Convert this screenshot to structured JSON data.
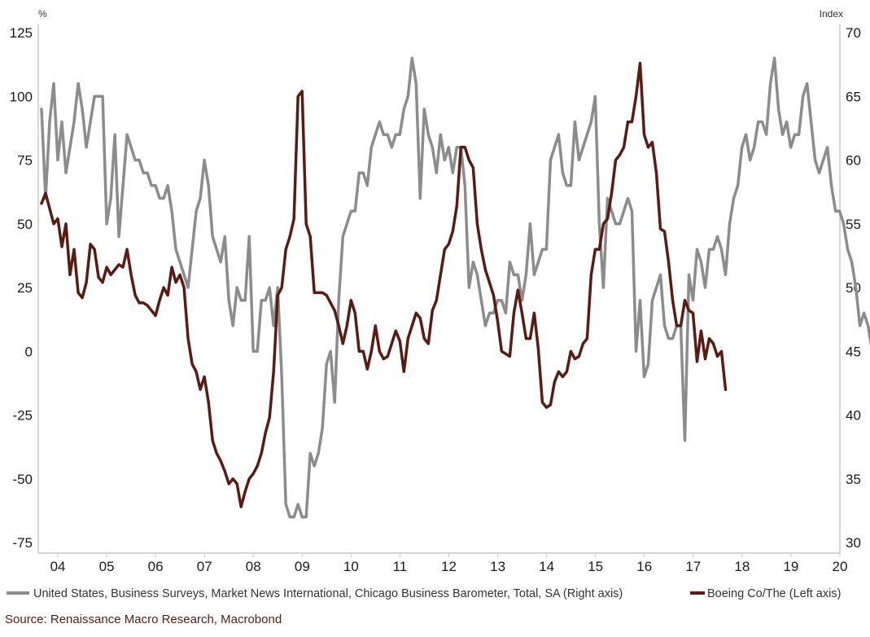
{
  "chart_data": {
    "type": "line",
    "left_axis": {
      "unit_label": "%",
      "ylim": [
        -75,
        125
      ],
      "ticks": [
        125,
        100,
        75,
        50,
        25,
        0,
        -25,
        -50,
        -75
      ],
      "tick_labels": [
        "125",
        "100",
        "75",
        "50",
        "25",
        "0",
        "-25",
        "-50",
        "-75"
      ]
    },
    "right_axis": {
      "unit_label": "Index",
      "ylim": [
        30,
        70
      ],
      "ticks": [
        70,
        65,
        60,
        55,
        50,
        45,
        40,
        35,
        30
      ],
      "tick_labels": [
        "70",
        "65",
        "60",
        "55",
        "50",
        "45",
        "40",
        "35",
        "30"
      ]
    },
    "x_axis": {
      "xlim": [
        2003.6,
        2020.0
      ],
      "ticks": [
        2004,
        2005,
        2006,
        2007,
        2008,
        2009,
        2010,
        2011,
        2012,
        2013,
        2014,
        2015,
        2016,
        2017,
        2018,
        2019,
        2020
      ],
      "tick_labels": [
        "04",
        "05",
        "06",
        "07",
        "08",
        "09",
        "10",
        "11",
        "12",
        "13",
        "14",
        "15",
        "16",
        "17",
        "18",
        "19",
        "20"
      ]
    },
    "series": [
      {
        "name": "United States, Business Surveys, Market News International, Chicago Business Barometer, Total, SA (Right axis)",
        "axis": "right",
        "color": "#8c8c8c",
        "x_start": 2003.667,
        "x_step": 0.0833,
        "values": [
          64,
          57,
          63,
          66,
          60,
          63,
          59,
          61,
          63,
          66,
          64,
          61,
          63,
          65,
          65,
          65,
          55,
          57,
          62,
          54,
          58,
          62,
          61,
          60,
          60,
          59,
          59,
          58,
          58,
          57,
          57,
          58,
          56,
          53,
          52,
          51,
          50,
          53,
          56,
          57,
          60,
          58,
          54,
          53,
          52,
          54,
          49,
          47,
          50,
          49,
          49,
          54,
          45,
          45,
          49,
          49,
          50,
          47,
          50,
          43,
          33,
          32,
          32,
          33,
          32,
          32,
          37,
          36,
          37,
          39,
          44,
          45,
          41,
          49,
          54,
          55,
          56,
          56,
          59,
          59,
          58,
          61,
          62,
          63,
          62,
          62,
          61,
          62,
          62,
          64,
          65,
          68,
          66,
          57,
          64,
          62,
          61,
          59,
          62,
          60,
          61,
          59,
          61,
          61,
          58,
          50,
          52,
          51,
          49,
          47,
          48,
          48,
          49,
          49,
          48,
          52,
          51,
          51,
          49,
          51,
          55,
          51,
          52,
          53,
          53,
          60,
          61,
          62,
          59,
          58,
          58,
          63,
          60,
          61,
          62,
          63,
          65,
          55,
          50,
          57,
          56,
          55,
          55,
          56,
          57,
          56,
          45,
          49,
          43,
          44,
          49,
          50,
          51,
          47,
          46,
          46,
          47,
          47,
          38,
          51,
          49,
          53,
          52,
          50,
          53,
          53,
          54,
          53,
          51,
          55,
          57,
          58,
          61,
          62,
          60,
          61,
          63,
          63,
          62,
          66,
          68,
          64,
          62,
          63,
          61,
          62,
          62,
          65,
          66,
          63,
          60,
          59,
          60,
          61,
          58,
          56,
          56,
          55,
          53,
          52,
          50,
          47,
          48,
          47,
          45,
          44,
          45,
          44,
          42
        ]
      },
      {
        "name": "Boeing Co/The (Left axis)",
        "axis": "left",
        "color": "#5b1a12",
        "x_start": 2003.667,
        "x_step": 0.0833,
        "values": [
          58,
          62,
          56,
          50,
          52,
          41,
          50,
          30,
          40,
          23,
          21,
          27,
          42,
          40,
          29,
          27,
          33,
          30,
          32,
          34,
          33,
          40,
          30,
          22,
          19,
          19,
          18,
          16,
          14,
          20,
          25,
          22,
          33,
          27,
          30,
          25,
          5,
          -5,
          -8,
          -15,
          -10,
          -20,
          -35,
          -40,
          -43,
          -47,
          -52,
          -50,
          -52,
          -61,
          -55,
          -50,
          -48,
          -45,
          -40,
          -32,
          -26,
          -8,
          22,
          25,
          40,
          45,
          52,
          100,
          102,
          50,
          45,
          23,
          23,
          23,
          22,
          19,
          16,
          10,
          3,
          10,
          20,
          15,
          0,
          0,
          -7,
          0,
          10,
          0,
          -3,
          -2,
          3,
          8,
          4,
          -8,
          5,
          10,
          15,
          13,
          5,
          3,
          16,
          20,
          30,
          40,
          42,
          47,
          57,
          80,
          80,
          75,
          72,
          50,
          40,
          32,
          27,
          22,
          12,
          0,
          -1,
          -2,
          15,
          24,
          15,
          5,
          5,
          15,
          1,
          -20,
          -22,
          -21,
          -12,
          -8,
          -10,
          -8,
          0,
          -3,
          -2,
          3,
          5,
          30,
          40,
          40,
          50,
          52,
          62,
          75,
          77,
          80,
          90,
          90,
          100,
          113,
          85,
          80,
          82,
          70,
          48,
          47,
          35,
          20,
          10,
          10,
          20,
          16,
          15,
          -4,
          8,
          -3,
          5,
          3,
          -2,
          0,
          -15
        ]
      }
    ]
  },
  "legend": {
    "item1": "United States, Business Surveys, Market News International, Chicago Business Barometer, Total, SA (Right axis)",
    "item2": "Boeing Co/The (Left axis)"
  },
  "source": "Source: Renaissance Macro Research, Macrobond"
}
